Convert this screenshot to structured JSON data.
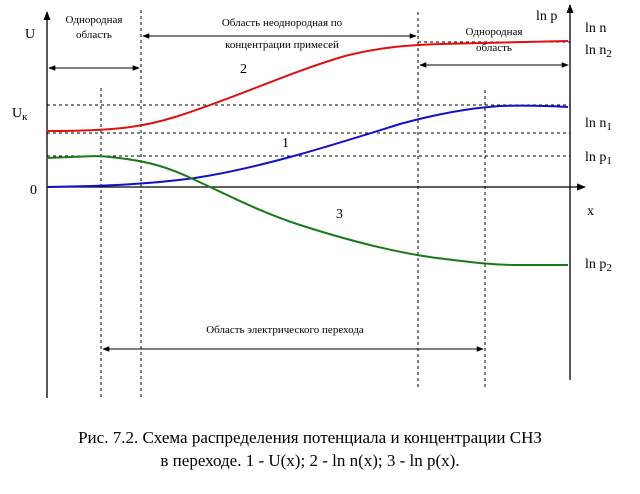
{
  "axes": {
    "left_label": "U",
    "right_label": "ln p",
    "x_label": "x",
    "zero_label": "0",
    "uk_label": "U",
    "uk_sub": "к"
  },
  "right_labels": {
    "ln_n": "ln n",
    "ln_n2_main": "ln n",
    "ln_n2_sub": "2",
    "ln_n1_main": "ln n",
    "ln_n1_sub": "1",
    "ln_p1_main": "ln p",
    "ln_p1_sub": "1",
    "ln_p2_main": "ln p",
    "ln_p2_sub": "2"
  },
  "regions": {
    "left_line1": "Однородная",
    "left_line2": "область",
    "middle_line1": "Область неоднородная по",
    "middle_line2": "концентрации примесей",
    "right_line1": "Однородная",
    "right_line2": "область",
    "transition": "Область электрического перехода"
  },
  "curves": {
    "ln_n": {
      "label": "2",
      "color": "#e01010"
    },
    "potential": {
      "label": "1",
      "color": "#1010c8"
    },
    "ln_p": {
      "label": "3",
      "color": "#1a7a1a"
    }
  },
  "caption": {
    "line1": "Рис. 7.2. Схема распределения потенциала и концентрации СНЗ",
    "line2": "в переходе. 1 - U(x); 2 - ln n(x); 3 - ln p(x)."
  }
}
